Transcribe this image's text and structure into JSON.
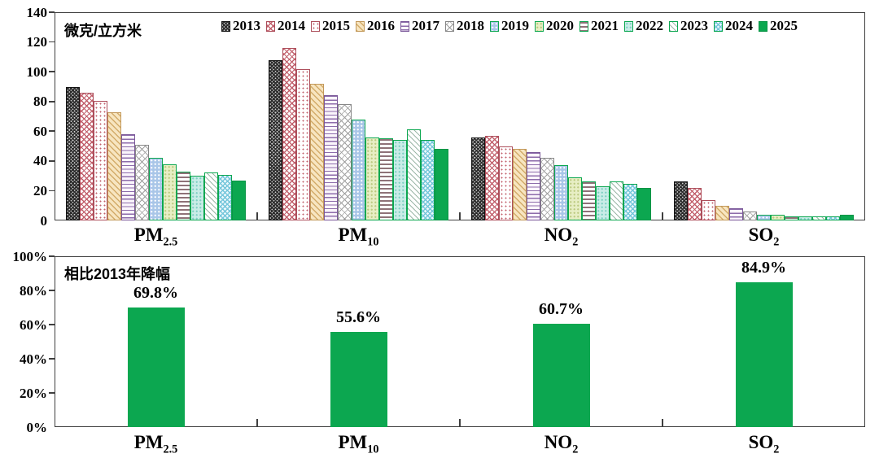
{
  "colors": {
    "green": "#0ca750",
    "axis": "#3f3f3f",
    "text": "#000000"
  },
  "top_chart_title": "微克/立方米",
  "bottom_chart_title": "相比2013年降幅",
  "category_labels": [
    {
      "base": "PM",
      "sub": "2.5"
    },
    {
      "base": "PM",
      "sub": "10"
    },
    {
      "base": "NO",
      "sub": "2"
    },
    {
      "base": "SO",
      "sub": "2"
    }
  ],
  "chart_data": [
    {
      "type": "bar",
      "title": "微克/立方米",
      "ylabel": "微克/立方米",
      "categories": [
        "PM2.5",
        "PM10",
        "NO2",
        "SO2"
      ],
      "series": [
        {
          "name": "2013",
          "values": [
            89.5,
            108,
            56,
            26.5
          ]
        },
        {
          "name": "2014",
          "values": [
            86,
            116,
            57,
            22
          ]
        },
        {
          "name": "2015",
          "values": [
            80.6,
            101.5,
            50,
            13.5
          ]
        },
        {
          "name": "2016",
          "values": [
            73,
            92,
            48,
            10
          ]
        },
        {
          "name": "2017",
          "values": [
            58,
            84,
            46,
            8
          ]
        },
        {
          "name": "2018",
          "values": [
            51,
            78,
            42,
            6
          ]
        },
        {
          "name": "2019",
          "values": [
            42,
            68,
            37,
            4
          ]
        },
        {
          "name": "2020",
          "values": [
            38,
            56,
            29,
            4
          ]
        },
        {
          "name": "2021",
          "values": [
            33,
            55,
            26,
            3
          ]
        },
        {
          "name": "2022",
          "values": [
            30,
            54,
            23,
            3
          ]
        },
        {
          "name": "2023",
          "values": [
            32,
            61,
            26,
            3
          ]
        },
        {
          "name": "2024",
          "values": [
            30.5,
            54,
            24.5,
            3
          ]
        },
        {
          "name": "2025",
          "values": [
            27,
            48,
            22,
            4
          ]
        }
      ],
      "ylim": [
        0,
        140
      ],
      "yticks": [
        0,
        20,
        40,
        60,
        80,
        100,
        120,
        140
      ],
      "grid": false,
      "legend_position": "top-inside"
    },
    {
      "type": "bar",
      "title": "相比2013年降幅",
      "categories": [
        "PM2.5",
        "PM10",
        "NO2",
        "SO2"
      ],
      "values": [
        69.8,
        55.6,
        60.7,
        84.9
      ],
      "value_labels": [
        "69.8%",
        "55.6%",
        "60.7%",
        "84.9%"
      ],
      "ylim": [
        0,
        100
      ],
      "ytick_labels": [
        "0%",
        "20%",
        "40%",
        "60%",
        "80%",
        "100%"
      ],
      "yticks": [
        0,
        20,
        40,
        60,
        80,
        100
      ],
      "grid": false,
      "bar_color": "#0ca750"
    }
  ]
}
